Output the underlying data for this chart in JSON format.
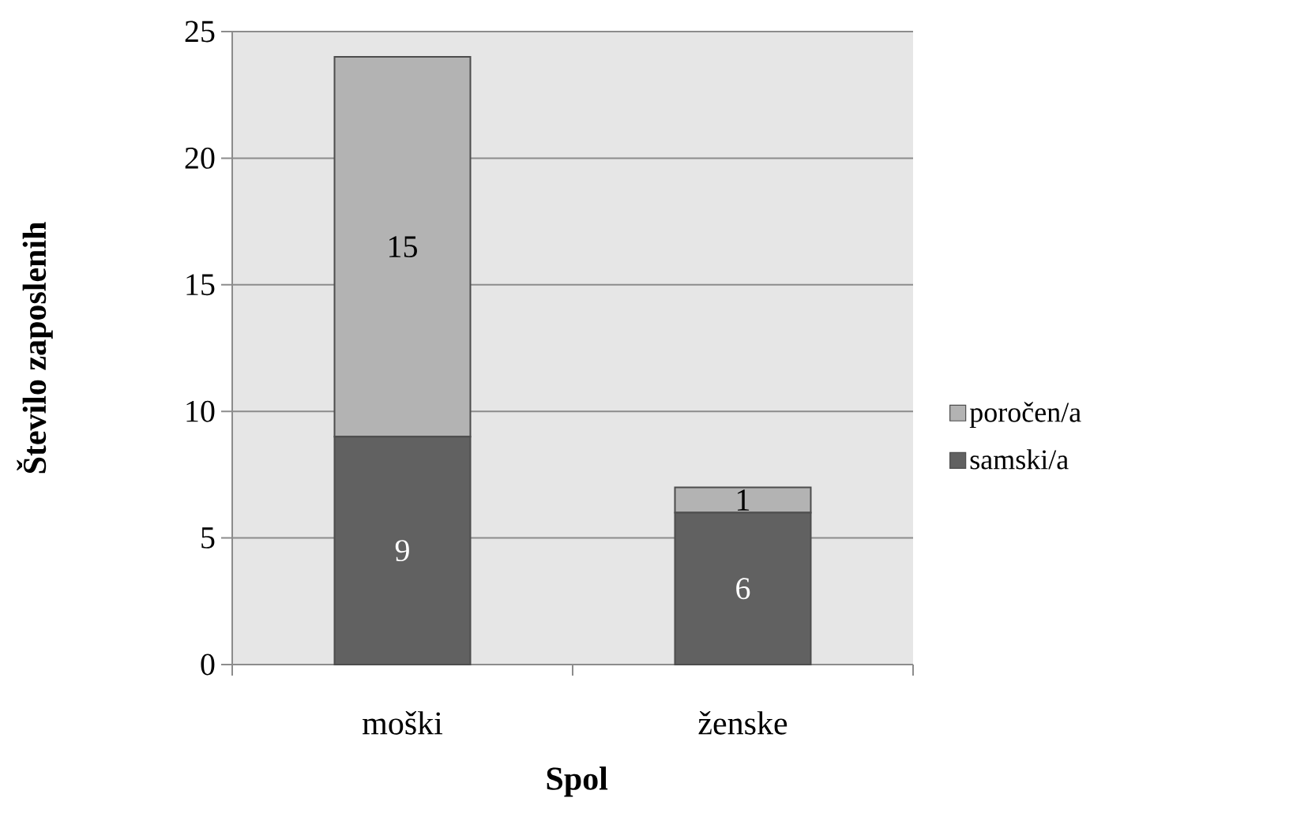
{
  "chart_data": {
    "type": "bar",
    "stacked": true,
    "xlabel": "Spol",
    "ylabel": "Število zaposlenih",
    "categories": [
      "moški",
      "ženske"
    ],
    "series": [
      {
        "name": "samski/a",
        "color": "#616161",
        "values": [
          9,
          6
        ]
      },
      {
        "name": "poročen/a",
        "color": "#b3b3b3",
        "values": [
          15,
          1
        ]
      }
    ],
    "ylim": [
      0,
      25
    ],
    "yticks": [
      0,
      5,
      10,
      15,
      20,
      25
    ],
    "grid": "y",
    "legend": "right",
    "data_labels": true
  }
}
